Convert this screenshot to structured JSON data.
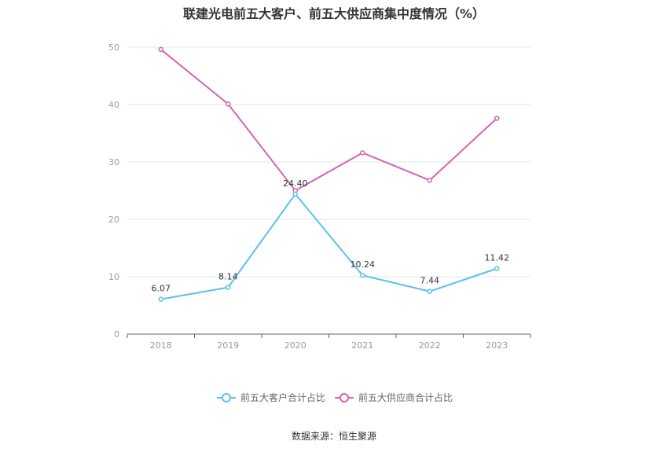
{
  "chart_data": {
    "type": "line",
    "title": "联建光电前五大客户、前五大供应商集中度情况（%）",
    "categories": [
      "2018",
      "2019",
      "2020",
      "2021",
      "2022",
      "2023"
    ],
    "series": [
      {
        "name": "前五大客户合计占比",
        "values": [
          6.07,
          8.14,
          24.4,
          10.24,
          7.44,
          11.42
        ],
        "labels": [
          "6.07",
          "8.14",
          "24.40",
          "10.24",
          "7.44",
          "11.42"
        ],
        "color": "#5bc0eb"
      },
      {
        "name": "前五大供应商合计占比",
        "values": [
          49.6,
          40.1,
          25.0,
          31.6,
          26.8,
          37.6
        ],
        "color": "#d265b4"
      }
    ],
    "yticks": [
      0,
      10,
      20,
      30,
      40,
      50
    ],
    "ylim": [
      0,
      50
    ],
    "grid": true,
    "legend": "bottom"
  },
  "source": "数据来源：恒生聚源"
}
